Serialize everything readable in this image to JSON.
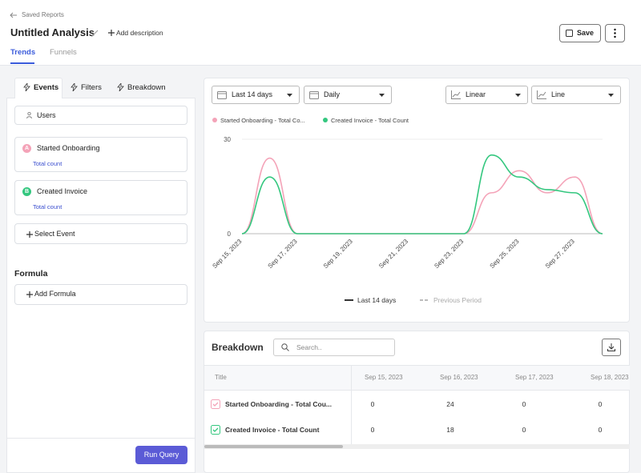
{
  "header": {
    "back": "Saved Reports",
    "title": "Untitled Analysis",
    "add_description": "Add description",
    "save": "Save"
  },
  "tabs": [
    "Trends",
    "Funnels"
  ],
  "panel_tabs": [
    "Events",
    "Filters",
    "Breakdown"
  ],
  "users": "Users",
  "events": [
    {
      "letter": "A",
      "name": "Started Onboarding",
      "metric": "Total count"
    },
    {
      "letter": "B",
      "name": "Created Invoice",
      "metric": "Total count"
    }
  ],
  "select_event": "Select Event",
  "formula": {
    "title": "Formula",
    "add": "Add Formula"
  },
  "run_query": "Run Query",
  "controls": [
    "Last 14 days",
    "Daily",
    "Linear",
    "Line"
  ],
  "chart_data": {
    "type": "line",
    "categories": [
      "Sep 15, 2023",
      null,
      "Sep 17, 2023",
      null,
      "Sep 19, 2023",
      null,
      "Sep 21, 2023",
      null,
      "Sep 23, 2023",
      null,
      "Sep 25, 2023",
      null,
      "Sep 27, 2023",
      null
    ],
    "series": [
      {
        "name": "Started Onboarding - Total Co...",
        "color": "#f4a3b8",
        "values": [
          0,
          24,
          0,
          0,
          0,
          0,
          0,
          0,
          0,
          13,
          20,
          13,
          18,
          0
        ]
      },
      {
        "name": "Created Invoice - Total Count",
        "color": "#34c77f",
        "values": [
          0,
          18,
          0,
          0,
          0,
          0,
          0,
          0,
          0,
          25,
          18,
          14,
          13,
          0
        ]
      }
    ],
    "ylim": [
      0,
      30
    ],
    "yticks": [
      0,
      30
    ],
    "grid": true,
    "period_legend": [
      "Last 14 days",
      "Previous Period"
    ]
  },
  "breakdown": {
    "title": "Breakdown",
    "search": "Search..",
    "columns": [
      "Title",
      "Sep 15, 2023",
      "Sep 16, 2023",
      "Sep 17, 2023",
      "Sep 18, 2023"
    ],
    "rows": [
      [
        "Started Onboarding - Total Cou...",
        "0",
        "24",
        "0",
        "0"
      ],
      [
        "Created Invoice - Total Count",
        "0",
        "18",
        "0",
        "0"
      ]
    ]
  }
}
